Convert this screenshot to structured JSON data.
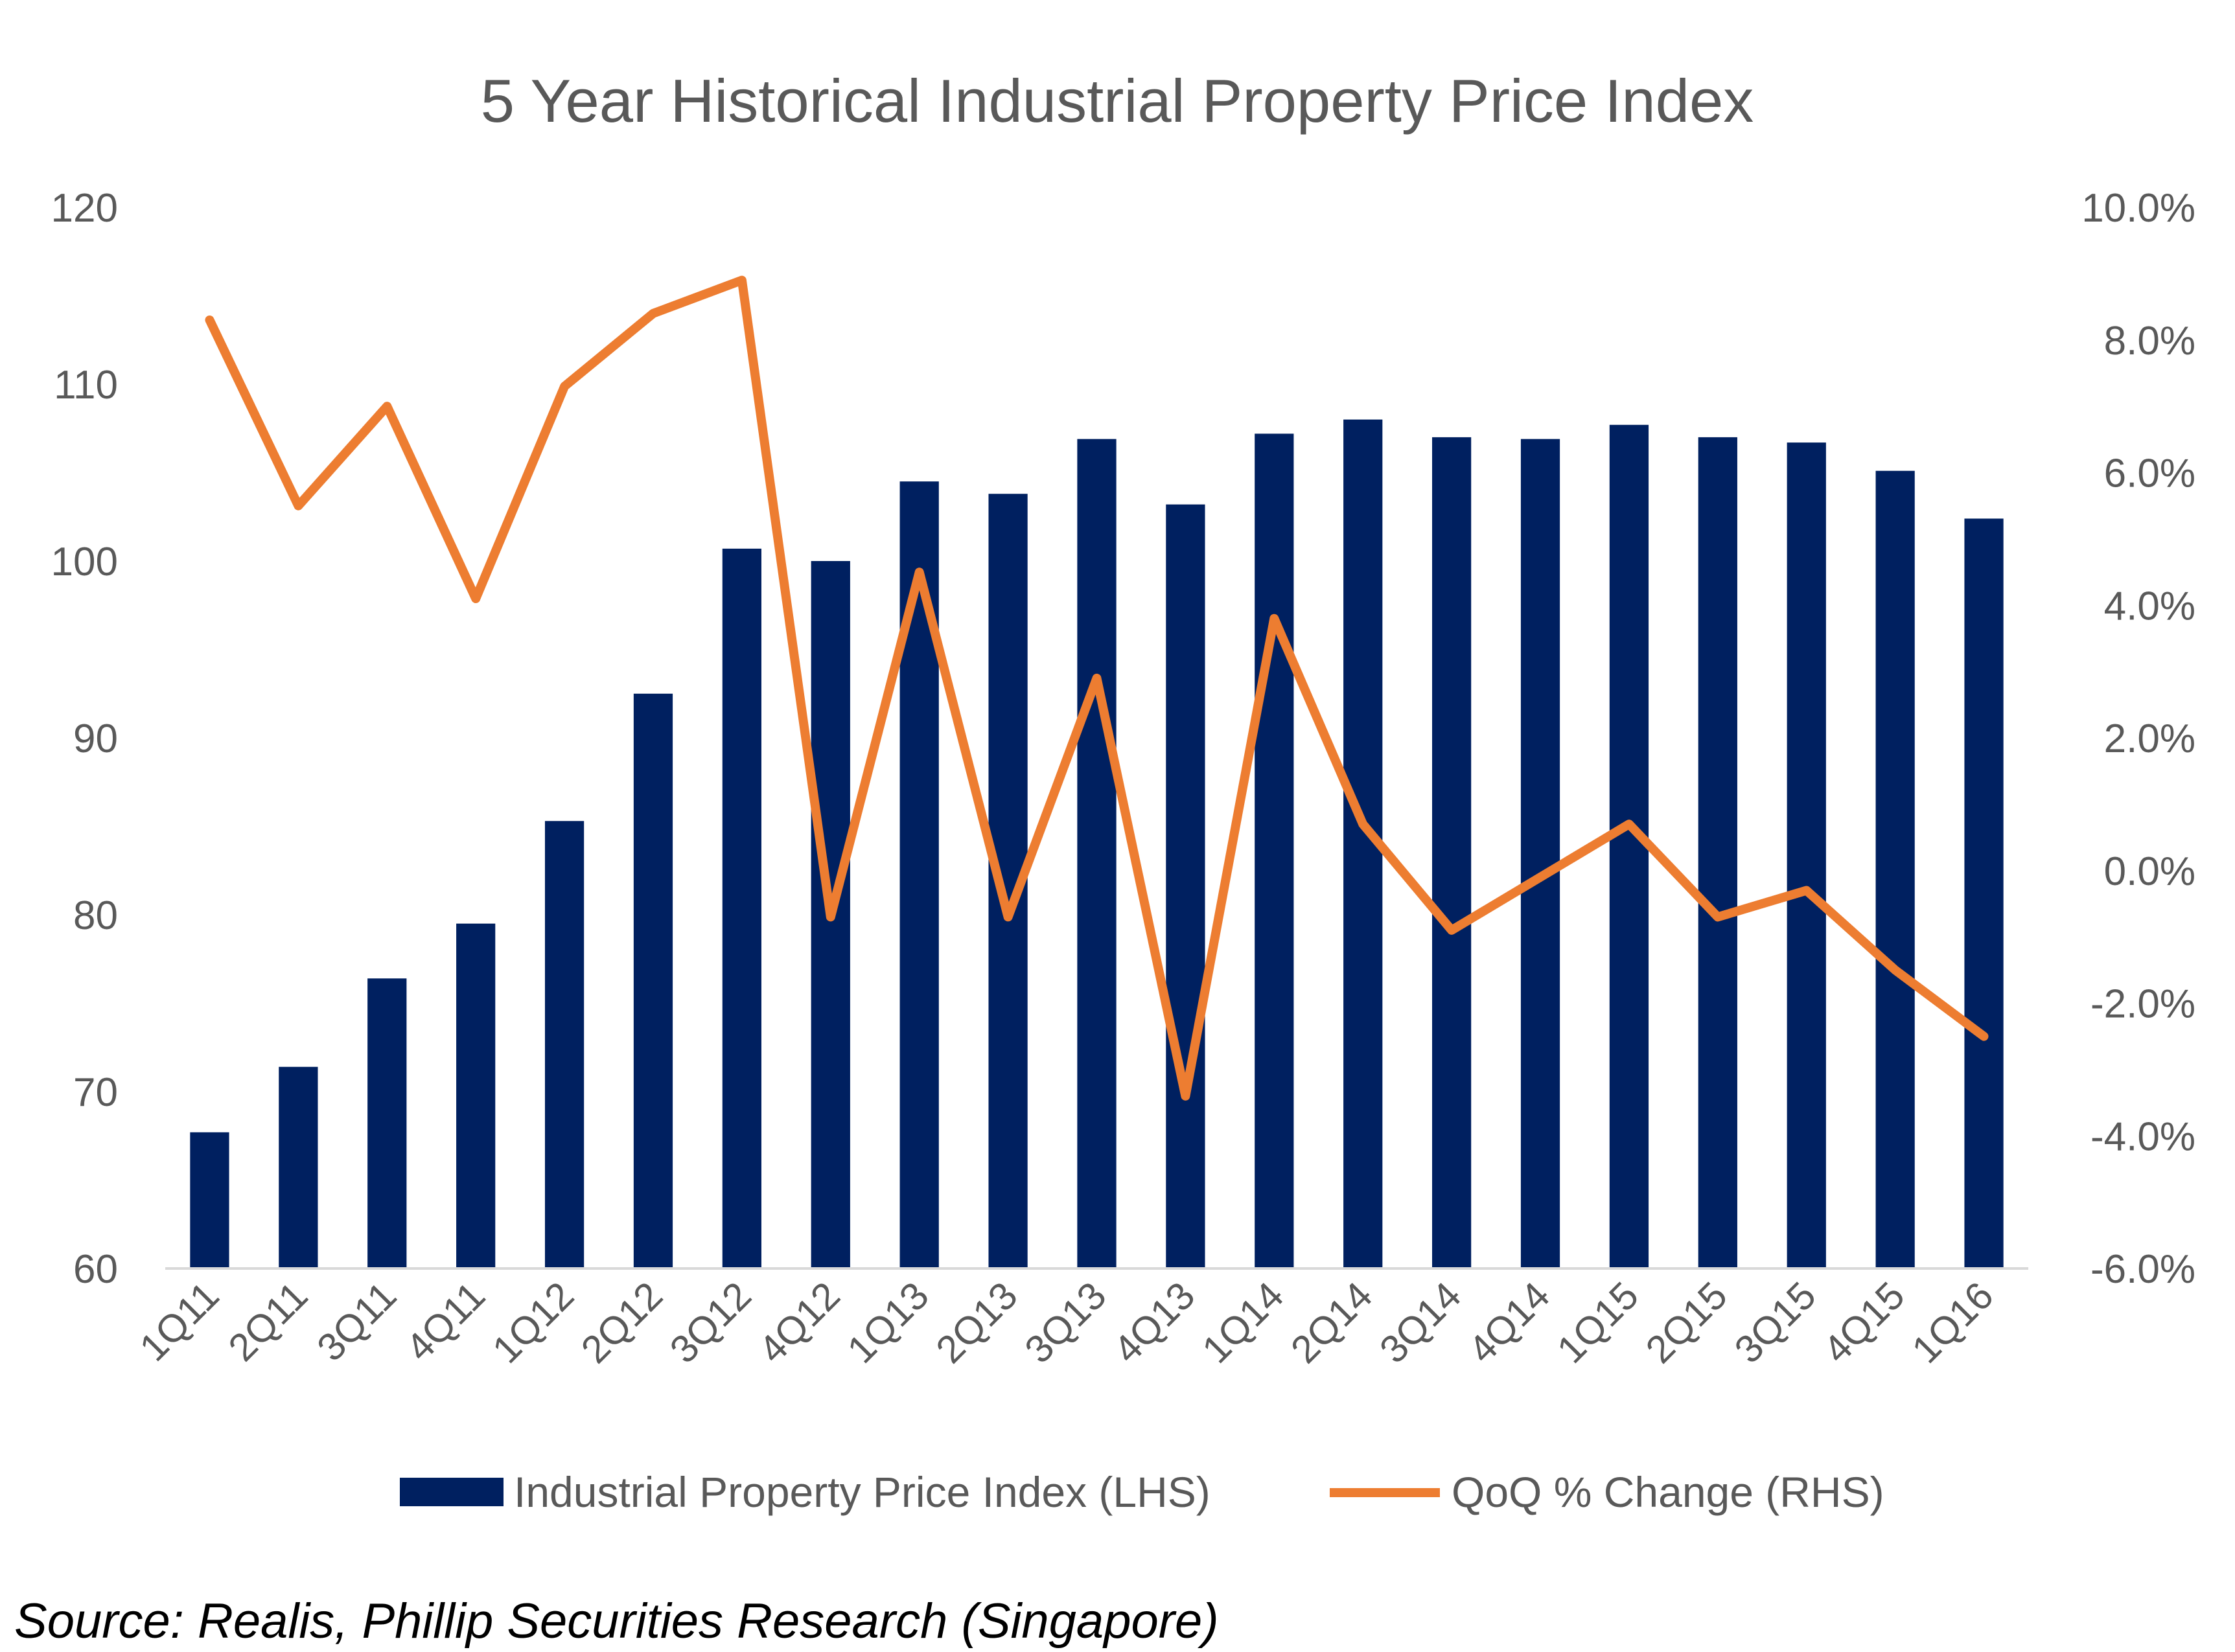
{
  "chart_data": {
    "type": "bar",
    "title": "5 Year Historical Industrial Property Price Index",
    "categories": [
      "1Q11",
      "2Q11",
      "3Q11",
      "4Q11",
      "1Q12",
      "2Q12",
      "3Q12",
      "4Q12",
      "1Q13",
      "2Q13",
      "3Q13",
      "4Q13",
      "1Q14",
      "2Q14",
      "3Q14",
      "4Q14",
      "1Q15",
      "2Q15",
      "3Q15",
      "4Q15",
      "1Q16"
    ],
    "series": [
      {
        "name": "Industrial Property Price Index (LHS)",
        "type": "bar",
        "axis": "left",
        "color": "#002060",
        "values": [
          67.7,
          71.4,
          76.4,
          79.5,
          85.3,
          92.5,
          100.7,
          100.0,
          104.5,
          103.8,
          106.9,
          103.2,
          107.2,
          108.0,
          107.0,
          106.9,
          107.7,
          107.0,
          106.7,
          105.1,
          102.4
        ]
      },
      {
        "name": "QoQ % Change (RHS)",
        "type": "line",
        "axis": "right",
        "color": "#ED7D31",
        "values": [
          8.3,
          5.5,
          7.0,
          4.1,
          7.3,
          8.4,
          8.9,
          -0.7,
          4.5,
          -0.7,
          2.9,
          -3.4,
          3.8,
          0.7,
          -0.9,
          -0.1,
          0.7,
          -0.7,
          -0.3,
          -1.5,
          -2.5
        ]
      }
    ],
    "ylim": [
      60,
      120
    ],
    "yticks": [
      60,
      70,
      80,
      90,
      100,
      110,
      120
    ],
    "y2lim": [
      -6,
      10
    ],
    "y2ticks": [
      "-6.0%",
      "-4.0%",
      "-2.0%",
      "0.0%",
      "2.0%",
      "4.0%",
      "6.0%",
      "8.0%",
      "10.0%"
    ],
    "grid": false,
    "legend_position": "bottom",
    "source_note": "Source: Realis, Phillip Securities Research (Singapore)"
  }
}
